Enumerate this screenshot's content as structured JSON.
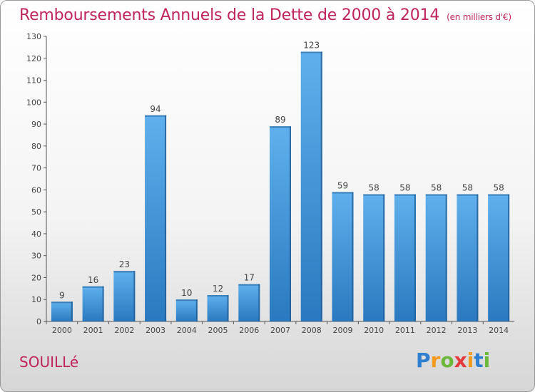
{
  "chart_data": {
    "type": "bar",
    "title": "Remboursements Annuels de la Dette de 2000 à 2014",
    "subtitle": "(en milliers d'€)",
    "categories": [
      "2000",
      "2001",
      "2002",
      "2003",
      "2004",
      "2005",
      "2006",
      "2007",
      "2008",
      "2009",
      "2010",
      "2011",
      "2012",
      "2013",
      "2014"
    ],
    "values": [
      9,
      16,
      23,
      94,
      10,
      12,
      17,
      89,
      123,
      59,
      58,
      58,
      58,
      58,
      58
    ],
    "ylim": [
      0,
      130
    ],
    "yticks": [
      0,
      10,
      20,
      30,
      40,
      50,
      60,
      70,
      80,
      90,
      100,
      110,
      120,
      130
    ],
    "grid": false,
    "legend": "none",
    "bar_color": "#3a8fd6"
  },
  "commune": "SOUILLé",
  "logo": {
    "parts": [
      "P",
      "r",
      "o",
      "x",
      "i",
      "t",
      "i"
    ]
  }
}
